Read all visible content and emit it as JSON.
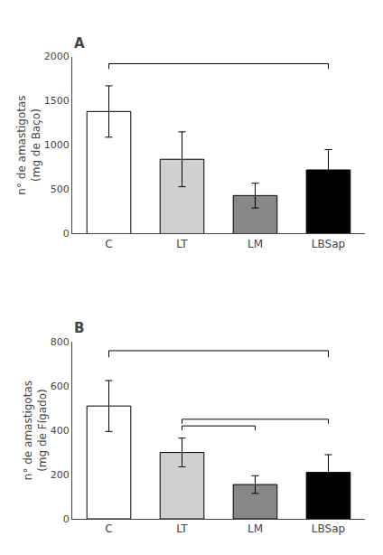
{
  "chart_data": [
    {
      "type": "bar",
      "title": "A",
      "categories": [
        "C",
        "LT",
        "LM",
        "LBSap"
      ],
      "values": [
        1380,
        840,
        430,
        720
      ],
      "errors": [
        290,
        310,
        140,
        230
      ],
      "colors": [
        "#ffffff",
        "#d0d0d0",
        "#888888",
        "#000000"
      ],
      "edge_color": "#000000",
      "ylabel": "n° de amastigotas\n(mg de Baço)",
      "ylim": [
        0,
        2000
      ],
      "yticks": [
        0,
        500,
        1000,
        1500,
        2000
      ],
      "grid": false,
      "brackets": [
        {
          "from": "C",
          "to": "LBSap",
          "y": 1920,
          "drop": 60
        }
      ]
    },
    {
      "type": "bar",
      "title": "B",
      "categories": [
        "C",
        "LT",
        "LM",
        "LBSap"
      ],
      "values": [
        510,
        300,
        155,
        210
      ],
      "errors": [
        115,
        65,
        40,
        80
      ],
      "colors": [
        "#ffffff",
        "#d0d0d0",
        "#888888",
        "#000000"
      ],
      "edge_color": "#000000",
      "ylabel": "n° de amastigotas\n(mg de Fígado)",
      "ylim": [
        0,
        800
      ],
      "yticks": [
        0,
        200,
        400,
        600,
        800
      ],
      "grid": false,
      "brackets": [
        {
          "from": "C",
          "to": "LBSap",
          "y": 760,
          "drop": 30
        },
        {
          "from": "LT",
          "to": "LM",
          "y": 420,
          "drop": 20
        },
        {
          "from": "LT",
          "to": "LBSap",
          "y": 450,
          "drop": 20
        }
      ]
    }
  ]
}
